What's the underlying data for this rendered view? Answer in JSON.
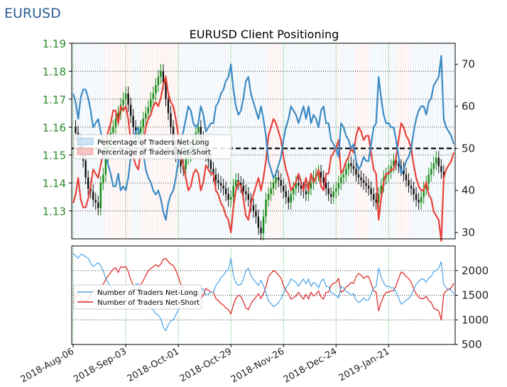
{
  "header": {
    "pair": "EURUSD"
  },
  "chart_data": [
    {
      "type": "line",
      "title": "EURUSD Client Positioning",
      "xlabel": "",
      "ylabel_left": "",
      "ylabel_right": "",
      "x_ticks": [
        "2018-Aug-06",
        "2018-Sep-03",
        "2018-Oct-01",
        "2018-Oct-29",
        "2018-Nov-26",
        "2018-Dec-24",
        "2019-Jan-21"
      ],
      "y_left_ticks": [
        "1.13",
        "1.14",
        "1.15",
        "1.16",
        "1.17",
        "1.18",
        "1.19"
      ],
      "y_left_range": [
        1.12,
        1.19
      ],
      "y_right_ticks": [
        "30",
        "40",
        "50",
        "60",
        "70"
      ],
      "y_right_range": [
        28.5,
        75
      ],
      "reference_line": 50,
      "legend": {
        "position": "upper-left",
        "entries": [
          "Percentage of Traders Net-Long",
          "Percentage of Traders Net-Short"
        ]
      },
      "price_close": [
        1.16,
        1.158,
        1.155,
        1.152,
        1.148,
        1.142,
        1.138,
        1.137,
        1.134,
        1.133,
        1.131,
        1.14,
        1.143,
        1.15,
        1.155,
        1.158,
        1.16,
        1.163,
        1.165,
        1.168,
        1.17,
        1.172,
        1.168,
        1.164,
        1.16,
        1.156,
        1.158,
        1.16,
        1.163,
        1.165,
        1.167,
        1.17,
        1.172,
        1.175,
        1.178,
        1.18,
        1.176,
        1.17,
        1.165,
        1.16,
        1.153,
        1.15,
        1.148,
        1.146,
        1.145,
        1.149,
        1.15,
        1.152,
        1.155,
        1.158,
        1.16,
        1.156,
        1.153,
        1.15,
        1.148,
        1.145,
        1.143,
        1.141,
        1.14,
        1.139,
        1.138,
        1.136,
        1.134,
        1.135,
        1.139,
        1.141,
        1.14,
        1.139,
        1.137,
        1.136,
        1.134,
        1.132,
        1.13,
        1.128,
        1.124,
        1.122,
        1.128,
        1.134,
        1.136,
        1.138,
        1.14,
        1.142,
        1.141,
        1.139,
        1.137,
        1.135,
        1.133,
        1.136,
        1.138,
        1.14,
        1.139,
        1.138,
        1.137,
        1.136,
        1.138,
        1.14,
        1.142,
        1.143,
        1.144,
        1.142,
        1.14,
        1.138,
        1.136,
        1.135,
        1.137,
        1.138,
        1.14,
        1.142,
        1.143,
        1.145,
        1.147,
        1.146,
        1.145,
        1.143,
        1.142,
        1.141,
        1.14,
        1.139,
        1.138,
        1.136,
        1.134,
        1.133,
        1.136,
        1.139,
        1.142,
        1.143,
        1.144,
        1.146,
        1.148,
        1.147,
        1.146,
        1.145,
        1.143,
        1.141,
        1.139,
        1.138,
        1.136,
        1.134,
        1.133,
        1.135,
        1.138,
        1.14,
        1.143,
        1.145,
        1.147,
        1.149,
        1.146,
        1.144,
        1.142
      ],
      "series": [
        {
          "name": "Percentage of Traders Net-Long",
          "values": [
            63,
            61,
            57,
            62,
            64,
            64,
            62,
            59,
            55,
            56,
            57,
            54,
            51,
            48,
            46,
            44,
            41,
            41,
            44,
            40,
            41,
            40,
            43,
            48,
            52,
            54,
            55,
            51,
            49,
            45,
            43,
            42,
            40,
            39,
            40,
            38,
            35,
            33,
            37,
            39,
            40,
            43,
            47,
            52,
            54,
            57,
            60,
            59,
            56,
            55,
            56,
            60,
            58,
            54,
            55,
            56,
            56,
            60,
            61,
            63,
            64,
            66,
            67,
            70,
            64,
            60,
            58,
            59,
            62,
            66,
            67,
            63,
            61,
            59,
            57,
            60,
            57,
            53,
            47,
            45,
            43,
            44,
            46,
            48,
            52,
            55,
            57,
            60,
            59,
            58,
            56,
            58,
            60,
            57,
            60,
            56,
            58,
            57,
            55,
            59,
            60,
            56,
            56,
            52,
            51,
            50,
            48,
            56,
            55,
            53,
            52,
            50,
            51,
            47,
            45,
            46,
            48,
            47,
            47,
            51,
            55,
            56,
            67,
            62,
            58,
            56,
            56,
            55,
            55,
            52,
            48,
            44,
            45,
            47,
            48,
            50,
            54,
            57,
            59,
            60,
            60,
            58,
            61,
            62,
            65,
            66,
            67,
            72,
            57,
            55,
            54,
            53,
            51
          ]
        },
        {
          "name": "Percentage of Traders Net-Short",
          "values": [
            37,
            39,
            43,
            38,
            36,
            36,
            38,
            41,
            45,
            44,
            43,
            46,
            49,
            52,
            54,
            56,
            59,
            59,
            56,
            60,
            59,
            60,
            57,
            52,
            48,
            46,
            45,
            49,
            51,
            55,
            57,
            58,
            60,
            61,
            60,
            62,
            65,
            67,
            63,
            61,
            60,
            57,
            53,
            48,
            46,
            43,
            40,
            41,
            44,
            45,
            44,
            40,
            42,
            46,
            45,
            44,
            44,
            40,
            39,
            37,
            36,
            34,
            33,
            30,
            36,
            40,
            42,
            41,
            38,
            34,
            33,
            37,
            39,
            41,
            43,
            40,
            43,
            47,
            53,
            55,
            57,
            56,
            54,
            52,
            48,
            45,
            43,
            40,
            41,
            42,
            44,
            42,
            40,
            43,
            40,
            44,
            42,
            43,
            45,
            41,
            40,
            44,
            44,
            48,
            49,
            50,
            52,
            44,
            45,
            47,
            48,
            50,
            49,
            53,
            55,
            54,
            52,
            53,
            53,
            49,
            45,
            44,
            33,
            38,
            42,
            44,
            44,
            45,
            45,
            48,
            52,
            56,
            55,
            53,
            52,
            50,
            46,
            43,
            41,
            40,
            40,
            42,
            39,
            38,
            35,
            34,
            33,
            28,
            43,
            45,
            46,
            47,
            49
          ]
        }
      ]
    },
    {
      "type": "line",
      "title": "",
      "xlabel": "",
      "ylabel": "",
      "y_ticks": [
        "500",
        "1000",
        "1500",
        "2000"
      ],
      "y_range": [
        500,
        2500
      ],
      "legend": {
        "position": "upper-left",
        "entries": [
          "Number of Traders Net-Long",
          "Number of Traders Net-Short"
        ]
      },
      "series": [
        {
          "name": "Number of Traders Net-Long",
          "values": [
            2350,
            2300,
            2250,
            2330,
            2320,
            2280,
            2250,
            2150,
            2080,
            2120,
            2160,
            2100,
            2000,
            1850,
            1750,
            1680,
            1580,
            1500,
            1580,
            1450,
            1450,
            1400,
            1480,
            1600,
            1680,
            1720,
            1730,
            1600,
            1520,
            1400,
            1300,
            1260,
            1200,
            1120,
            1100,
            1020,
            850,
            780,
            900,
            980,
            1000,
            1100,
            1200,
            1350,
            1420,
            1520,
            1600,
            1580,
            1500,
            1480,
            1520,
            1650,
            1620,
            1500,
            1520,
            1560,
            1560,
            1700,
            1760,
            1860,
            1900,
            1980,
            2020,
            2250,
            1900,
            1750,
            1700,
            1720,
            1820,
            2000,
            2050,
            1900,
            1820,
            1760,
            1700,
            1800,
            1700,
            1550,
            1380,
            1330,
            1270,
            1300,
            1350,
            1430,
            1550,
            1650,
            1720,
            1830,
            1800,
            1760,
            1680,
            1760,
            1830,
            1730,
            1830,
            1680,
            1760,
            1730,
            1650,
            1780,
            1830,
            1680,
            1680,
            1550,
            1530,
            1500,
            1440,
            1680,
            1650,
            1580,
            1550,
            1500,
            1530,
            1400,
            1350,
            1380,
            1440,
            1400,
            1400,
            1530,
            1650,
            1680,
            2050,
            1880,
            1750,
            1680,
            1680,
            1650,
            1650,
            1560,
            1440,
            1320,
            1350,
            1400,
            1430,
            1500,
            1620,
            1720,
            1780,
            1830,
            1830,
            1760,
            1850,
            1880,
            1980,
            2000,
            2050,
            2180,
            1720,
            1650,
            1620,
            1600,
            1530
          ]
        },
        {
          "name": "Number of Traders Net-Short",
          "values": [
            1350,
            1450,
            1600,
            1430,
            1380,
            1380,
            1420,
            1520,
            1620,
            1580,
            1560,
            1650,
            1720,
            1820,
            1900,
            1960,
            2030,
            2060,
            1960,
            2080,
            2060,
            2080,
            1980,
            1820,
            1700,
            1620,
            1600,
            1720,
            1790,
            1900,
            2000,
            2040,
            2080,
            2120,
            2080,
            2130,
            2230,
            2250,
            2180,
            2130,
            2100,
            2000,
            1880,
            1720,
            1640,
            1530,
            1440,
            1460,
            1560,
            1590,
            1560,
            1430,
            1500,
            1640,
            1600,
            1560,
            1560,
            1430,
            1390,
            1330,
            1300,
            1240,
            1210,
            1120,
            1300,
            1430,
            1500,
            1470,
            1370,
            1240,
            1210,
            1330,
            1400,
            1460,
            1530,
            1430,
            1530,
            1670,
            1880,
            1940,
            2000,
            1970,
            1910,
            1850,
            1700,
            1590,
            1530,
            1420,
            1450,
            1480,
            1560,
            1480,
            1420,
            1520,
            1420,
            1560,
            1480,
            1520,
            1590,
            1460,
            1420,
            1560,
            1560,
            1700,
            1740,
            1760,
            1840,
            1560,
            1590,
            1670,
            1700,
            1760,
            1740,
            1880,
            1940,
            1910,
            1840,
            1880,
            1880,
            1740,
            1590,
            1560,
            1180,
            1350,
            1480,
            1560,
            1560,
            1590,
            1590,
            1700,
            1840,
            1970,
            1940,
            1880,
            1840,
            1760,
            1630,
            1530,
            1460,
            1430,
            1430,
            1480,
            1390,
            1350,
            1240,
            1210,
            1180,
            1000,
            1520,
            1590,
            1620,
            1650,
            1740
          ]
        }
      ]
    }
  ]
}
